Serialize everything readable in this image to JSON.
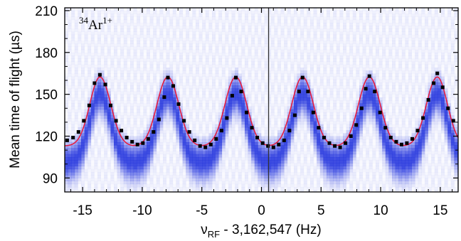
{
  "chart_data": {
    "type": "scatter",
    "annotation": {
      "sup": "34",
      "base": "Ar",
      "charge": "1+"
    },
    "xlabel": {
      "prefix": "ν",
      "sub": "RF",
      "rest": " - 3,162,547 (Hz)"
    },
    "ylabel": "Mean time of flight  (µs)",
    "xlim": [
      -16.5,
      16.5
    ],
    "ylim": [
      80,
      212
    ],
    "xticks": [
      -15,
      -10,
      -5,
      0,
      5,
      10,
      15
    ],
    "yticks": [
      90,
      120,
      150,
      180,
      210
    ],
    "xtick_labels": [
      "-15",
      "-10",
      "-5",
      "0",
      "5",
      "10",
      "15"
    ],
    "ytick_labels": [
      "90",
      "120",
      "150",
      "180",
      "210"
    ],
    "vertical_marker_x": 0.6,
    "fit_line_color": "#e8183a",
    "data_point_color": "#000000",
    "density_color": "#2233dd",
    "peaks": [
      -13.55,
      -7.85,
      -2.15,
      3.45,
      9.05,
      14.75
    ],
    "fit_baseline_us": 113,
    "fit_peak_us": 165,
    "data_points": [
      {
        "x": -16.3,
        "y": 117
      },
      {
        "x": -15.8,
        "y": 119
      },
      {
        "x": -15.35,
        "y": 123
      },
      {
        "x": -14.9,
        "y": 131
      },
      {
        "x": -14.45,
        "y": 142
      },
      {
        "x": -14.0,
        "y": 158
      },
      {
        "x": -13.55,
        "y": 164
      },
      {
        "x": -13.1,
        "y": 157
      },
      {
        "x": -12.65,
        "y": 142
      },
      {
        "x": -12.2,
        "y": 131
      },
      {
        "x": -11.75,
        "y": 124
      },
      {
        "x": -11.3,
        "y": 119
      },
      {
        "x": -10.85,
        "y": 116
      },
      {
        "x": -10.4,
        "y": 114
      },
      {
        "x": -9.95,
        "y": 115
      },
      {
        "x": -9.5,
        "y": 118
      },
      {
        "x": -9.05,
        "y": 123
      },
      {
        "x": -8.6,
        "y": 132
      },
      {
        "x": -8.15,
        "y": 148
      },
      {
        "x": -7.85,
        "y": 162
      },
      {
        "x": -7.4,
        "y": 156
      },
      {
        "x": -6.95,
        "y": 143
      },
      {
        "x": -6.5,
        "y": 131
      },
      {
        "x": -6.05,
        "y": 123
      },
      {
        "x": -5.6,
        "y": 117
      },
      {
        "x": -5.15,
        "y": 113
      },
      {
        "x": -4.7,
        "y": 112
      },
      {
        "x": -4.25,
        "y": 114
      },
      {
        "x": -3.8,
        "y": 118
      },
      {
        "x": -3.35,
        "y": 124
      },
      {
        "x": -2.9,
        "y": 133
      },
      {
        "x": -2.45,
        "y": 149
      },
      {
        "x": -2.15,
        "y": 162
      },
      {
        "x": -1.7,
        "y": 152
      },
      {
        "x": -1.25,
        "y": 137
      },
      {
        "x": -0.8,
        "y": 126
      },
      {
        "x": -0.35,
        "y": 119
      },
      {
        "x": 0.1,
        "y": 115
      },
      {
        "x": 0.55,
        "y": 113
      },
      {
        "x": 1.0,
        "y": 112
      },
      {
        "x": 1.45,
        "y": 114
      },
      {
        "x": 1.9,
        "y": 117
      },
      {
        "x": 2.35,
        "y": 124
      },
      {
        "x": 2.8,
        "y": 135
      },
      {
        "x": 3.15,
        "y": 152
      },
      {
        "x": 3.45,
        "y": 162
      },
      {
        "x": 3.9,
        "y": 152
      },
      {
        "x": 4.35,
        "y": 137
      },
      {
        "x": 4.8,
        "y": 126
      },
      {
        "x": 5.25,
        "y": 119
      },
      {
        "x": 5.7,
        "y": 115
      },
      {
        "x": 6.15,
        "y": 113
      },
      {
        "x": 6.6,
        "y": 112
      },
      {
        "x": 7.05,
        "y": 115
      },
      {
        "x": 7.5,
        "y": 120
      },
      {
        "x": 7.95,
        "y": 128
      },
      {
        "x": 8.4,
        "y": 140
      },
      {
        "x": 8.75,
        "y": 154
      },
      {
        "x": 9.05,
        "y": 163
      },
      {
        "x": 9.5,
        "y": 152
      },
      {
        "x": 9.95,
        "y": 137
      },
      {
        "x": 10.4,
        "y": 126
      },
      {
        "x": 10.85,
        "y": 119
      },
      {
        "x": 11.3,
        "y": 116
      },
      {
        "x": 11.75,
        "y": 114
      },
      {
        "x": 12.2,
        "y": 115
      },
      {
        "x": 12.65,
        "y": 118
      },
      {
        "x": 13.1,
        "y": 124
      },
      {
        "x": 13.55,
        "y": 133
      },
      {
        "x": 14.0,
        "y": 146
      },
      {
        "x": 14.45,
        "y": 158
      },
      {
        "x": 14.75,
        "y": 165
      },
      {
        "x": 15.2,
        "y": 155
      },
      {
        "x": 15.65,
        "y": 140
      },
      {
        "x": 16.1,
        "y": 131
      }
    ]
  }
}
